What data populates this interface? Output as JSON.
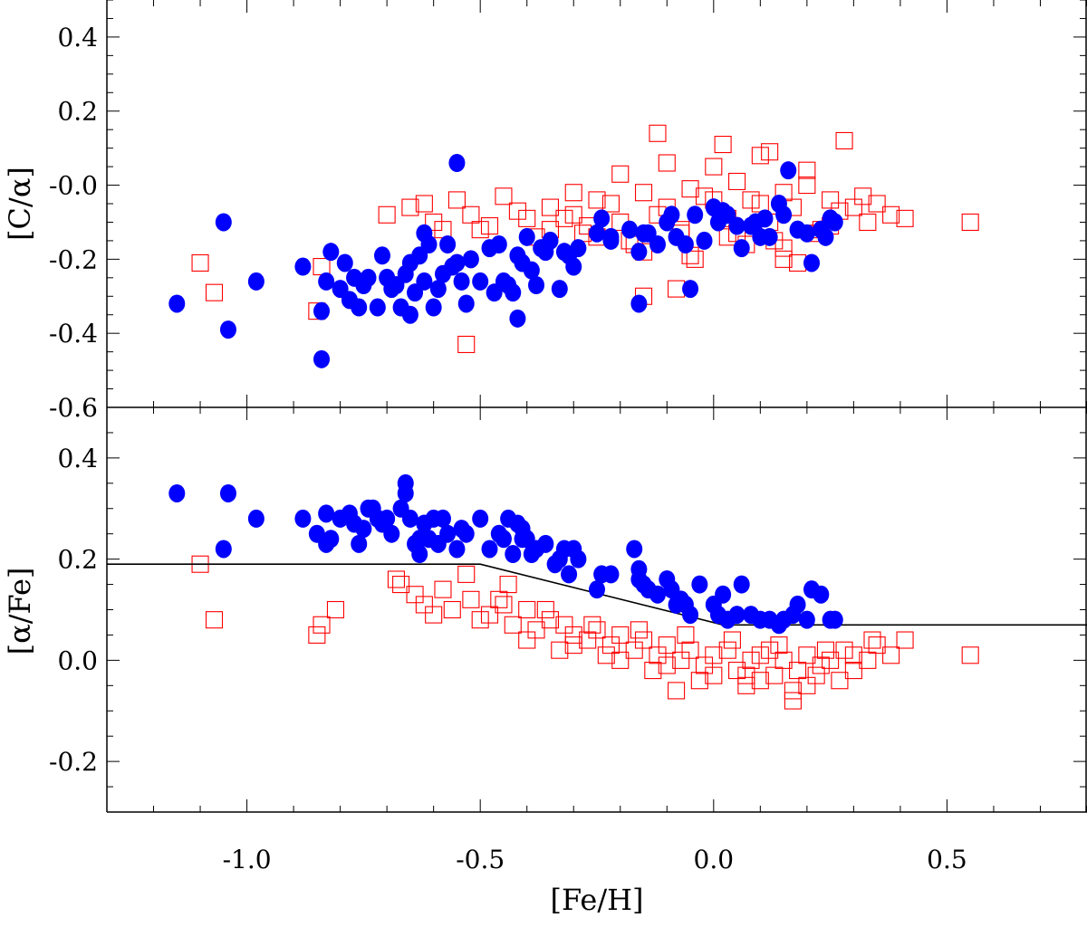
{
  "chart_data": [
    {
      "panel": "top",
      "type": "scatter",
      "ylabel": "[C/α]",
      "xlim": [
        -1.3,
        0.8
      ],
      "ylim": [
        -0.6,
        0.5
      ],
      "yticks": [
        0.4,
        0.2,
        0.0,
        -0.2,
        -0.4,
        -0.6
      ],
      "ytick_labels": [
        "0.4",
        "0.2",
        "-0.0",
        "-0.2",
        "-0.4",
        "-0.6"
      ],
      "grid": false,
      "series": [
        {
          "marker": "filled-circle",
          "color": "#0000ff",
          "x": [
            -1.15,
            -1.05,
            -1.04,
            -0.98,
            -0.88,
            -0.84,
            -0.84,
            -0.83,
            -0.82,
            -0.8,
            -0.79,
            -0.78,
            -0.77,
            -0.76,
            -0.75,
            -0.74,
            -0.72,
            -0.71,
            -0.7,
            -0.69,
            -0.68,
            -0.67,
            -0.66,
            -0.65,
            -0.64,
            -0.63,
            -0.62,
            -0.62,
            -0.61,
            -0.6,
            -0.59,
            -0.58,
            -0.57,
            -0.56,
            -0.55,
            -0.54,
            -0.53,
            -0.52,
            -0.5,
            -0.48,
            -0.47,
            -0.46,
            -0.45,
            -0.44,
            -0.43,
            -0.42,
            -0.41,
            -0.4,
            -0.39,
            -0.38,
            -0.37,
            -0.36,
            -0.35,
            -0.33,
            -0.32,
            -0.31,
            -0.3,
            -0.29,
            -0.25,
            -0.24,
            -0.22,
            -0.18,
            -0.16,
            -0.15,
            -0.14,
            -0.12,
            -0.1,
            -0.09,
            -0.08,
            -0.06,
            -0.04,
            -0.02,
            0.0,
            0.01,
            0.02,
            0.03,
            0.05,
            0.06,
            0.08,
            0.09,
            0.11,
            0.12,
            0.14,
            0.15,
            0.16,
            0.18,
            0.2,
            0.21,
            0.23,
            0.24,
            0.25,
            0.26,
            -0.65,
            -0.55,
            -0.42,
            -0.16,
            -0.22,
            0.1,
            -0.05
          ],
          "y": [
            -0.32,
            -0.1,
            -0.39,
            -0.26,
            -0.22,
            -0.47,
            -0.34,
            -0.26,
            -0.18,
            -0.28,
            -0.21,
            -0.31,
            -0.25,
            -0.33,
            -0.27,
            -0.25,
            -0.33,
            -0.19,
            -0.25,
            -0.28,
            -0.27,
            -0.33,
            -0.24,
            -0.21,
            -0.29,
            -0.19,
            -0.26,
            -0.13,
            -0.16,
            -0.33,
            -0.28,
            -0.24,
            -0.16,
            -0.22,
            -0.21,
            -0.26,
            -0.32,
            -0.2,
            -0.26,
            -0.17,
            -0.29,
            -0.16,
            -0.26,
            -0.27,
            -0.29,
            -0.19,
            -0.21,
            -0.14,
            -0.23,
            -0.27,
            -0.17,
            -0.18,
            -0.15,
            -0.28,
            -0.18,
            -0.19,
            -0.22,
            -0.17,
            -0.13,
            -0.09,
            -0.15,
            -0.12,
            -0.18,
            -0.13,
            -0.13,
            -0.16,
            -0.1,
            -0.08,
            -0.14,
            -0.16,
            -0.08,
            -0.15,
            -0.06,
            -0.1,
            -0.07,
            -0.08,
            -0.11,
            -0.17,
            -0.11,
            -0.1,
            -0.09,
            -0.14,
            -0.05,
            -0.08,
            0.04,
            -0.12,
            -0.13,
            -0.21,
            -0.12,
            -0.14,
            -0.09,
            -0.1,
            -0.35,
            0.06,
            -0.36,
            -0.32,
            -0.14,
            -0.14,
            -0.28
          ]
        },
        {
          "marker": "open-square",
          "color": "#ff0000",
          "x": [
            -1.1,
            -1.07,
            -0.85,
            -0.84,
            -0.53,
            0.55,
            0.18,
            0.15,
            -0.08,
            -0.15,
            0.35,
            0.38,
            0.41,
            -0.7,
            -0.65,
            -0.6,
            -0.55,
            -0.5,
            -0.45,
            -0.4,
            -0.35,
            -0.3,
            -0.25,
            -0.2,
            -0.15,
            -0.1,
            -0.05,
            0.0,
            0.05,
            0.1,
            0.15,
            0.2,
            0.25,
            0.3,
            -0.62,
            -0.58,
            -0.52,
            -0.48,
            -0.42,
            -0.38,
            -0.32,
            -0.28,
            -0.22,
            -0.18,
            -0.12,
            -0.07,
            -0.02,
            0.03,
            0.08,
            0.12,
            0.17,
            0.22,
            0.27,
            0.32,
            -0.3,
            -0.2,
            -0.1,
            0.0,
            0.1,
            0.2,
            -0.27,
            -0.17,
            -0.07,
            0.03,
            0.13,
            0.23,
            0.33,
            -0.35,
            -0.25,
            -0.15,
            -0.05,
            0.05,
            0.15,
            0.25,
            -0.12,
            0.02,
            0.12,
            0.28,
            -0.04,
            0.07
          ],
          "y": [
            -0.21,
            -0.29,
            -0.34,
            -0.22,
            -0.43,
            -0.1,
            -0.21,
            -0.2,
            -0.28,
            -0.3,
            -0.05,
            -0.08,
            -0.09,
            -0.08,
            -0.06,
            -0.1,
            -0.04,
            -0.12,
            -0.03,
            -0.09,
            -0.06,
            -0.08,
            -0.04,
            -0.1,
            -0.02,
            -0.06,
            -0.01,
            -0.04,
            0.01,
            -0.05,
            -0.02,
            0.0,
            -0.04,
            -0.06,
            -0.05,
            -0.12,
            -0.08,
            -0.11,
            -0.07,
            -0.14,
            -0.09,
            -0.13,
            -0.05,
            -0.15,
            -0.08,
            -0.12,
            -0.03,
            -0.09,
            -0.04,
            -0.1,
            -0.06,
            -0.13,
            -0.07,
            -0.03,
            -0.02,
            0.03,
            0.06,
            0.05,
            0.08,
            0.04,
            -0.11,
            -0.16,
            -0.13,
            -0.14,
            -0.15,
            -0.12,
            -0.1,
            -0.12,
            -0.14,
            -0.18,
            -0.19,
            -0.13,
            -0.17,
            -0.11,
            0.14,
            0.11,
            0.09,
            0.12,
            -0.2,
            -0.16
          ]
        }
      ]
    },
    {
      "panel": "bottom",
      "type": "scatter",
      "xlabel": "[Fe/H]",
      "ylabel": "[α/Fe]",
      "xlim": [
        -1.3,
        0.8
      ],
      "ylim": [
        -0.3,
        0.5
      ],
      "xticks": [
        -1.0,
        -0.5,
        0.0,
        0.5
      ],
      "xtick_labels": [
        "-1.0",
        "-0.5",
        "0.0",
        "0.5"
      ],
      "yticks": [
        0.4,
        0.2,
        0.0,
        -0.2
      ],
      "ytick_labels": [
        "0.4",
        "0.2",
        "0.0",
        "-0.2"
      ],
      "grid": false,
      "lines": [
        {
          "x": [
            -1.3,
            -0.5,
            0.02,
            0.8
          ],
          "y": [
            0.19,
            0.19,
            0.07,
            0.07
          ]
        }
      ],
      "series": [
        {
          "marker": "filled-circle",
          "color": "#0000ff",
          "x": [
            -1.15,
            -1.05,
            -1.04,
            -0.98,
            -0.88,
            -0.85,
            -0.83,
            -0.83,
            -0.82,
            -0.8,
            -0.78,
            -0.77,
            -0.76,
            -0.75,
            -0.74,
            -0.73,
            -0.72,
            -0.71,
            -0.7,
            -0.69,
            -0.67,
            -0.66,
            -0.65,
            -0.64,
            -0.63,
            -0.62,
            -0.61,
            -0.6,
            -0.59,
            -0.58,
            -0.57,
            -0.55,
            -0.54,
            -0.53,
            -0.5,
            -0.48,
            -0.46,
            -0.45,
            -0.44,
            -0.43,
            -0.42,
            -0.41,
            -0.4,
            -0.39,
            -0.38,
            -0.36,
            -0.34,
            -0.33,
            -0.32,
            -0.31,
            -0.3,
            -0.29,
            -0.25,
            -0.24,
            -0.22,
            -0.17,
            -0.16,
            -0.15,
            -0.14,
            -0.12,
            -0.1,
            -0.09,
            -0.08,
            -0.07,
            -0.05,
            -0.03,
            0.0,
            0.01,
            0.03,
            0.05,
            0.06,
            0.08,
            0.1,
            0.12,
            0.14,
            0.15,
            0.17,
            0.18,
            0.2,
            0.21,
            0.23,
            0.25,
            0.26,
            -0.66,
            -0.63,
            -0.41,
            -0.16,
            -0.06,
            0.02
          ],
          "y": [
            0.33,
            0.22,
            0.33,
            0.28,
            0.28,
            0.25,
            0.29,
            0.23,
            0.24,
            0.28,
            0.29,
            0.27,
            0.23,
            0.26,
            0.3,
            0.3,
            0.28,
            0.27,
            0.28,
            0.25,
            0.3,
            0.35,
            0.28,
            0.23,
            0.21,
            0.27,
            0.24,
            0.28,
            0.23,
            0.28,
            0.25,
            0.22,
            0.26,
            0.25,
            0.28,
            0.22,
            0.25,
            0.24,
            0.28,
            0.21,
            0.27,
            0.26,
            0.24,
            0.21,
            0.22,
            0.23,
            0.19,
            0.2,
            0.22,
            0.17,
            0.22,
            0.2,
            0.14,
            0.17,
            0.17,
            0.22,
            0.18,
            0.15,
            0.14,
            0.13,
            0.16,
            0.14,
            0.11,
            0.12,
            0.09,
            0.15,
            0.11,
            0.09,
            0.08,
            0.09,
            0.15,
            0.09,
            0.08,
            0.08,
            0.07,
            0.08,
            0.09,
            0.11,
            0.08,
            0.14,
            0.13,
            0.08,
            0.08,
            0.33,
            0.24,
            0.24,
            0.16,
            0.11,
            0.13
          ]
        },
        {
          "marker": "open-square",
          "color": "#ff0000",
          "x": [
            -1.1,
            -1.07,
            -0.85,
            -0.84,
            -0.81,
            -0.68,
            -0.67,
            -0.64,
            -0.62,
            -0.6,
            -0.56,
            -0.52,
            -0.5,
            -0.48,
            -0.45,
            -0.43,
            -0.4,
            -0.38,
            -0.35,
            -0.32,
            -0.3,
            -0.27,
            -0.25,
            -0.22,
            -0.2,
            -0.17,
            -0.15,
            -0.12,
            -0.1,
            -0.07,
            -0.05,
            -0.02,
            0.0,
            0.03,
            0.05,
            0.08,
            0.1,
            0.13,
            0.15,
            0.18,
            0.2,
            0.23,
            0.25,
            0.28,
            0.3,
            0.33,
            0.35,
            0.38,
            0.41,
            0.55,
            -0.58,
            -0.46,
            -0.36,
            -0.26,
            -0.16,
            -0.06,
            0.04,
            0.14,
            0.24,
            0.34,
            -0.3,
            -0.2,
            -0.1,
            0.0,
            0.1,
            0.2,
            0.3,
            -0.4,
            -0.33,
            -0.23,
            -0.13,
            -0.03,
            0.07,
            0.17,
            0.27,
            0.17,
            0.07,
            -0.08,
            0.12,
            0.22,
            -0.53,
            -0.44
          ],
          "y": [
            0.19,
            0.08,
            0.05,
            0.07,
            0.1,
            0.16,
            0.15,
            0.13,
            0.11,
            0.09,
            0.1,
            0.12,
            0.08,
            0.09,
            0.11,
            0.07,
            0.1,
            0.06,
            0.08,
            0.07,
            0.05,
            0.04,
            0.06,
            0.03,
            0.05,
            0.02,
            0.04,
            0.01,
            0.03,
            0.0,
            0.02,
            -0.01,
            0.01,
            0.02,
            -0.02,
            0.0,
            0.01,
            -0.03,
            0.0,
            -0.02,
            0.01,
            -0.01,
            0.0,
            0.02,
            0.01,
            0.0,
            0.03,
            0.01,
            0.04,
            0.01,
            0.14,
            0.12,
            0.1,
            0.07,
            0.06,
            0.05,
            0.04,
            0.03,
            0.02,
            0.04,
            0.03,
            0.0,
            -0.01,
            -0.03,
            -0.04,
            -0.05,
            -0.02,
            0.04,
            0.02,
            0.01,
            -0.02,
            -0.04,
            -0.03,
            -0.06,
            -0.04,
            -0.08,
            -0.05,
            -0.06,
            0.02,
            -0.03,
            0.17,
            0.15
          ]
        }
      ]
    }
  ]
}
